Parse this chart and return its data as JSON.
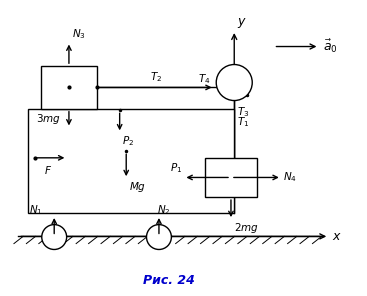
{
  "title": "Рис. 24",
  "background_color": "#ffffff",
  "fig_width": 3.67,
  "fig_height": 2.96,
  "dpi": 100,
  "xlim": [
    0,
    10.5
  ],
  "ylim": [
    0,
    9.0
  ]
}
